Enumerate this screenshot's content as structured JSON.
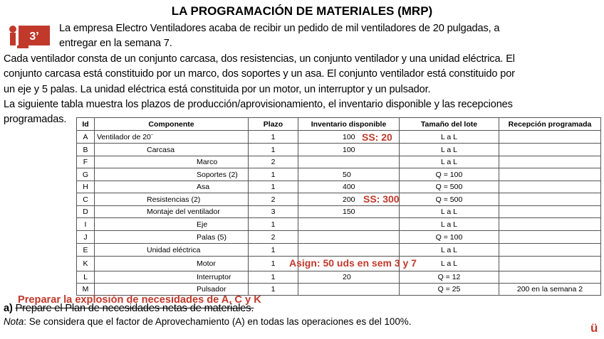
{
  "header": {
    "title": "LA PROGRAMACIÓN DE MATERIALES (MRP)",
    "icon_label": "3’"
  },
  "intro_lines": [
    "La empresa Electro Ventiladores acaba de recibir un pedido de mil ventiladores de 20 pulgadas, a",
    "entregar en la semana 7."
  ],
  "body_lines": [
    "Cada ventilador consta de un conjunto carcasa, dos resistencias, un conjunto ventilador y una unidad eléctrica. El",
    "conjunto carcasa está constituido por un marco, dos soportes y un asa. El conjunto ventilador está constituido por",
    "un eje y 5 palas. La unidad eléctrica está constituida por un motor, un interruptor y un pulsador.",
    "La siguiente tabla muestra los plazos de producción/aprovisionamiento, el inventario disponible y las recepciones",
    "programadas."
  ],
  "table": {
    "columns": [
      "Id",
      "Componente",
      "Plazo",
      "Inventario disponible",
      "Tamaño del lote",
      "Recepción programada"
    ],
    "rows": [
      [
        "A",
        "Ventilador de 20¨",
        "1",
        "100",
        "L a L",
        ""
      ],
      [
        "B",
        "Carcasa",
        "1",
        "100",
        "L a L",
        ""
      ],
      [
        "F",
        "Marco",
        "2",
        "",
        "L a L",
        ""
      ],
      [
        "G",
        "Soportes (2)",
        "1",
        "50",
        "Q = 100",
        ""
      ],
      [
        "H",
        "Asa",
        "1",
        "400",
        "Q = 500",
        ""
      ],
      [
        "C",
        "Resistencias (2)",
        "2",
        "200",
        "Q = 500",
        ""
      ],
      [
        "D",
        "Montaje del ventilador",
        "3",
        "150",
        "L a L",
        ""
      ],
      [
        "I",
        "Eje",
        "1",
        "",
        "L a L",
        ""
      ],
      [
        "J",
        "Palas (5)",
        "2",
        "",
        "Q = 100",
        ""
      ],
      [
        "E",
        "Unidad eléctrica",
        "1",
        "",
        "L a L",
        ""
      ],
      [
        "K",
        "Motor",
        "1",
        "",
        "L a L",
        ""
      ],
      [
        "L",
        "Interruptor",
        "1",
        "20",
        "Q = 12",
        ""
      ],
      [
        "M",
        "Pulsador",
        "1",
        "",
        "Q = 25",
        "200 en la semana 2"
      ]
    ]
  },
  "annotations": [
    "SS: 20",
    "SS: 300",
    "Asign: 50 uds en sem 3 y 7",
    "Preparar la explosión de necesidades de A, C y K"
  ],
  "task": {
    "label": "a)",
    "text": "Prepare el Plan de necesidades netas de materiales."
  },
  "note": {
    "label": "Nota",
    "text": ": Se considera que el factor de Aprovechamiento (A) en todas las operaciones es del 100%."
  },
  "logo": "ü"
}
